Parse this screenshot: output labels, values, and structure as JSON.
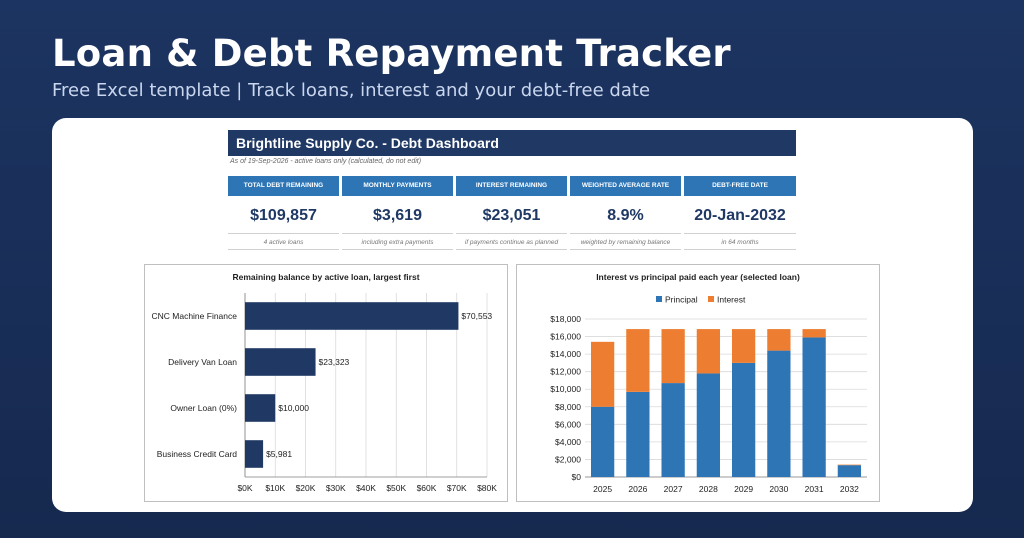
{
  "header": {
    "title": "Loan & Debt Repayment Tracker",
    "subtitle": "Free Excel template  |  Track loans, interest and your debt-free date"
  },
  "dashboard": {
    "title": "Brightline Supply Co. - Debt Dashboard",
    "as_of": "As of 19-Sep-2026 - active loans only (calculated, do not edit)",
    "kpis": [
      {
        "label": "Total debt remaining",
        "value": "$109,857",
        "note": "4 active loans"
      },
      {
        "label": "Monthly payments",
        "value": "$3,619",
        "note": "including extra payments"
      },
      {
        "label": "Interest remaining",
        "value": "$23,051",
        "note": "if payments continue as planned"
      },
      {
        "label": "Weighted average rate",
        "value": "8.9%",
        "note": "weighted by remaining balance"
      },
      {
        "label": "Debt-free date",
        "value": "20-Jan-2032",
        "note": "in 64 months"
      }
    ]
  },
  "chart_data": [
    {
      "type": "bar",
      "orientation": "horizontal",
      "title": "Remaining balance by active loan, largest first",
      "categories": [
        "CNC Machine Finance",
        "Delivery Van Loan",
        "Owner Loan (0%)",
        "Business Credit Card"
      ],
      "values": [
        70553,
        23323,
        10000,
        5981
      ],
      "data_labels": [
        "$70,553",
        "$23,323",
        "$10,000",
        "$5,981"
      ],
      "xlim": [
        0,
        80000
      ],
      "x_ticks": [
        0,
        10000,
        20000,
        30000,
        40000,
        50000,
        60000,
        70000,
        80000
      ],
      "x_tick_labels": [
        "$0K",
        "$10K",
        "$20K",
        "$30K",
        "$40K",
        "$50K",
        "$60K",
        "$70K",
        "$80K"
      ],
      "grid": true,
      "color": "#1f3864"
    },
    {
      "type": "bar",
      "stacked": true,
      "title": "Interest vs principal paid each year (selected loan)",
      "categories": [
        "2025",
        "2026",
        "2027",
        "2028",
        "2029",
        "2030",
        "2031",
        "2032"
      ],
      "series": [
        {
          "name": "Principal",
          "color": "#2e75b6",
          "values": [
            8000,
            9700,
            10700,
            11800,
            13000,
            14400,
            15900,
            1350
          ]
        },
        {
          "name": "Interest",
          "color": "#ed7d31",
          "values": [
            7400,
            7150,
            6150,
            5050,
            3850,
            2450,
            950,
            60
          ]
        }
      ],
      "ylim": [
        0,
        18000
      ],
      "y_ticks": [
        0,
        2000,
        4000,
        6000,
        8000,
        10000,
        12000,
        14000,
        16000,
        18000
      ],
      "y_tick_labels": [
        "$0",
        "$2,000",
        "$4,000",
        "$6,000",
        "$8,000",
        "$10,000",
        "$12,000",
        "$14,000",
        "$16,000",
        "$18,000"
      ],
      "legend": "top",
      "grid": true
    }
  ]
}
